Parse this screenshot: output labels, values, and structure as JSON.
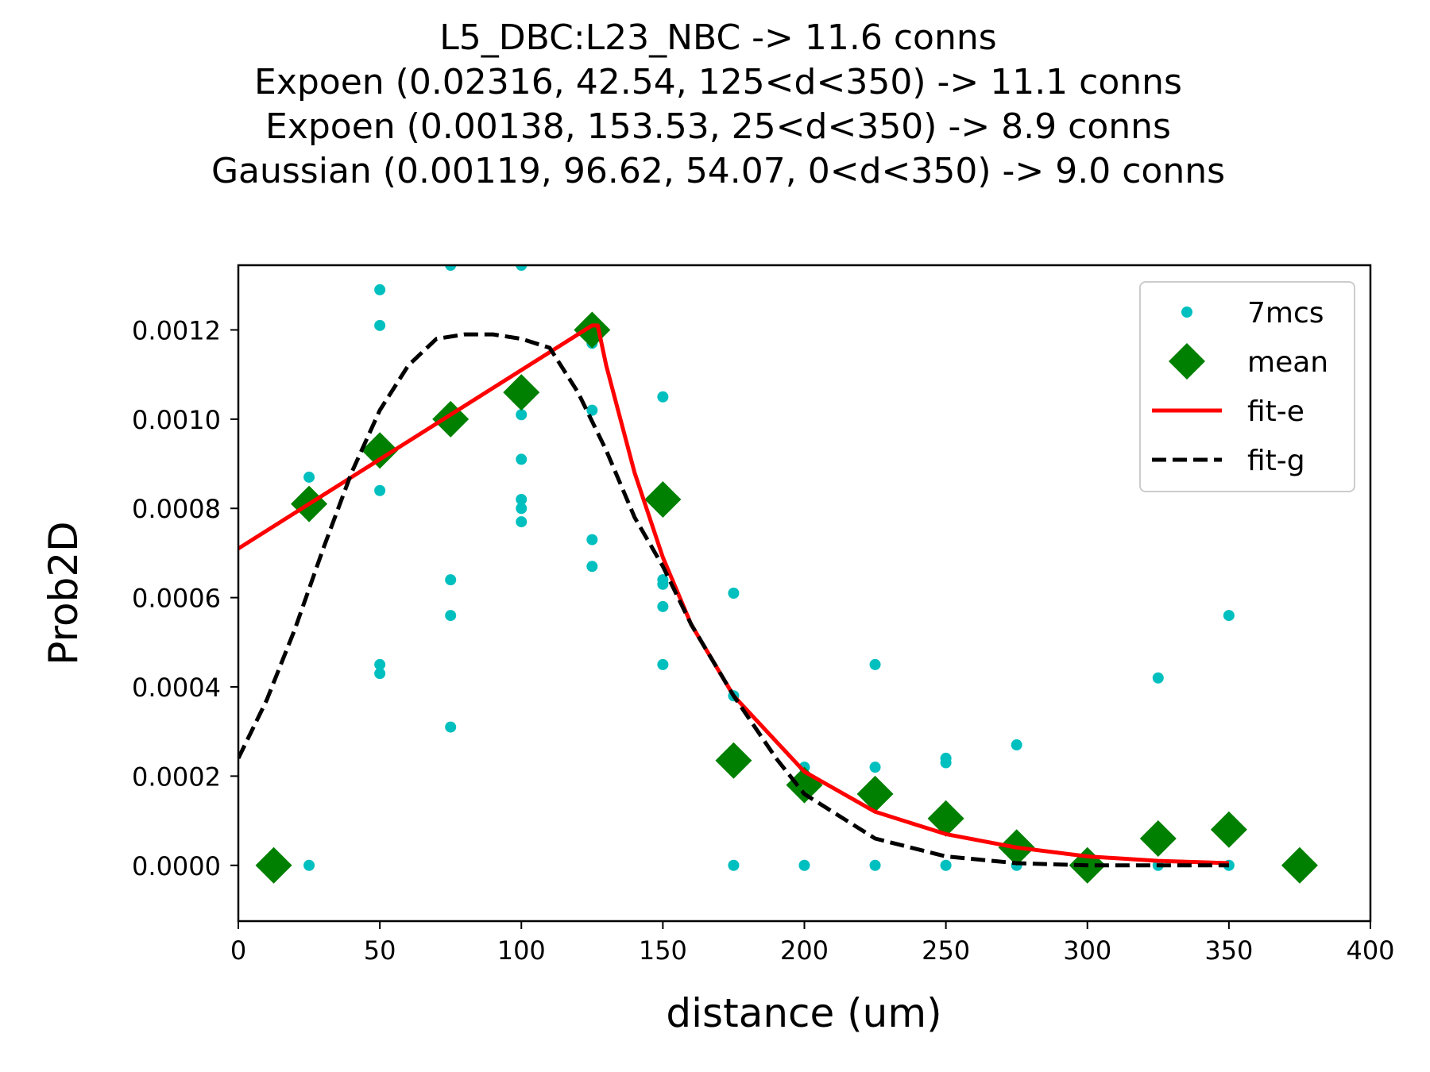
{
  "chart_data": {
    "type": "scatter",
    "title_lines": [
      "L5_DBC:L23_NBC -> 11.6 conns",
      "Expoen (0.02316, 42.54, 125<d<350) -> 11.1 conns",
      "Expoen (0.00138, 153.53, 25<d<350) -> 8.9 conns",
      "Gaussian (0.00119, 96.62, 54.07, 0<d<350) -> 9.0 conns"
    ],
    "xlabel": "distance (um)",
    "ylabel": "Prob2D",
    "xlim": [
      0,
      400
    ],
    "ylim": [
      -0.000125,
      0.001345
    ],
    "xticks": [
      0,
      50,
      100,
      150,
      200,
      250,
      300,
      350,
      400
    ],
    "xtick_labels": [
      "0",
      "50",
      "100",
      "150",
      "200",
      "250",
      "300",
      "350",
      "400"
    ],
    "yticks": [
      0.0,
      0.0002,
      0.0004,
      0.0006,
      0.0008,
      0.001,
      0.0012
    ],
    "ytick_labels": [
      "0.0000",
      "0.0002",
      "0.0004",
      "0.0006",
      "0.0008",
      "0.0010",
      "0.0012"
    ],
    "grid": false,
    "legend_position": "top-right",
    "series": [
      {
        "name": "7mcs",
        "kind": "dots",
        "color": "#00bfbf",
        "points": [
          [
            25,
            0.00087
          ],
          [
            25,
            0.0
          ],
          [
            50,
            0.00129
          ],
          [
            50,
            0.00121
          ],
          [
            50,
            0.00084
          ],
          [
            50,
            0.00045
          ],
          [
            50,
            0.00043
          ],
          [
            75,
            0.001345
          ],
          [
            75,
            0.00064
          ],
          [
            75,
            0.00056
          ],
          [
            75,
            0.00031
          ],
          [
            100,
            0.001345
          ],
          [
            100,
            0.00101
          ],
          [
            100,
            0.00091
          ],
          [
            100,
            0.00082
          ],
          [
            100,
            0.0008
          ],
          [
            100,
            0.00077
          ],
          [
            125,
            0.00102
          ],
          [
            125,
            0.00073
          ],
          [
            125,
            0.00067
          ],
          [
            125,
            0.00117
          ],
          [
            150,
            0.00105
          ],
          [
            150,
            0.00064
          ],
          [
            150,
            0.00063
          ],
          [
            150,
            0.00058
          ],
          [
            150,
            0.00045
          ],
          [
            175,
            0.00061
          ],
          [
            175,
            0.00038
          ],
          [
            175,
            0.0
          ],
          [
            200,
            0.00022
          ],
          [
            200,
            0.0
          ],
          [
            225,
            0.00045
          ],
          [
            225,
            0.00022
          ],
          [
            225,
            0.0
          ],
          [
            250,
            0.00024
          ],
          [
            250,
            0.00023
          ],
          [
            250,
            0.0
          ],
          [
            275,
            0.00027
          ],
          [
            275,
            0.0
          ],
          [
            300,
            0.0
          ],
          [
            325,
            0.00042
          ],
          [
            325,
            0.0
          ],
          [
            350,
            0.00056
          ],
          [
            350,
            0.0
          ]
        ]
      },
      {
        "name": "mean",
        "kind": "diamonds",
        "color": "#008000",
        "points": [
          [
            12.5,
            0.0
          ],
          [
            25,
            0.00081
          ],
          [
            50,
            0.00093
          ],
          [
            75,
            0.001
          ],
          [
            100,
            0.00106
          ],
          [
            125,
            0.0012
          ],
          [
            150,
            0.00082
          ],
          [
            175,
            0.000235
          ],
          [
            200,
            0.00018
          ],
          [
            225,
            0.00016
          ],
          [
            250,
            0.000105
          ],
          [
            275,
            4e-05
          ],
          [
            300,
            0.0
          ],
          [
            325,
            6e-05
          ],
          [
            350,
            8e-05
          ],
          [
            375,
            0.0
          ]
        ]
      },
      {
        "name": "fit-e",
        "kind": "line",
        "color": "#ff0000",
        "points": [
          [
            0,
            0.00071
          ],
          [
            125,
            0.00121
          ],
          [
            127,
            0.00121
          ],
          [
            130,
            0.00112
          ],
          [
            140,
            0.00088
          ],
          [
            150,
            0.00069
          ],
          [
            160,
            0.00054
          ],
          [
            175,
            0.00038
          ],
          [
            200,
            0.00021
          ],
          [
            225,
            0.00012
          ],
          [
            250,
            7e-05
          ],
          [
            275,
            4e-05
          ],
          [
            300,
            2e-05
          ],
          [
            325,
            1e-05
          ],
          [
            350,
            5e-06
          ]
        ]
      },
      {
        "name": "fit-g",
        "kind": "dashed",
        "color": "#000000",
        "points": [
          [
            0,
            0.00024
          ],
          [
            10,
            0.00037
          ],
          [
            20,
            0.00053
          ],
          [
            30,
            0.00071
          ],
          [
            40,
            0.00088
          ],
          [
            50,
            0.00102
          ],
          [
            60,
            0.00112
          ],
          [
            70,
            0.00118
          ],
          [
            80,
            0.00119
          ],
          [
            90,
            0.00119
          ],
          [
            100,
            0.00118
          ],
          [
            110,
            0.00116
          ],
          [
            120,
            0.00106
          ],
          [
            130,
            0.00093
          ],
          [
            140,
            0.00078
          ],
          [
            150,
            0.00067
          ],
          [
            160,
            0.00054
          ],
          [
            175,
            0.00038
          ],
          [
            190,
            0.00024
          ],
          [
            200,
            0.00016
          ],
          [
            225,
            6e-05
          ],
          [
            250,
            2e-05
          ],
          [
            275,
            5e-06
          ],
          [
            300,
            0.0
          ],
          [
            325,
            0.0
          ],
          [
            350,
            0.0
          ]
        ]
      }
    ]
  }
}
